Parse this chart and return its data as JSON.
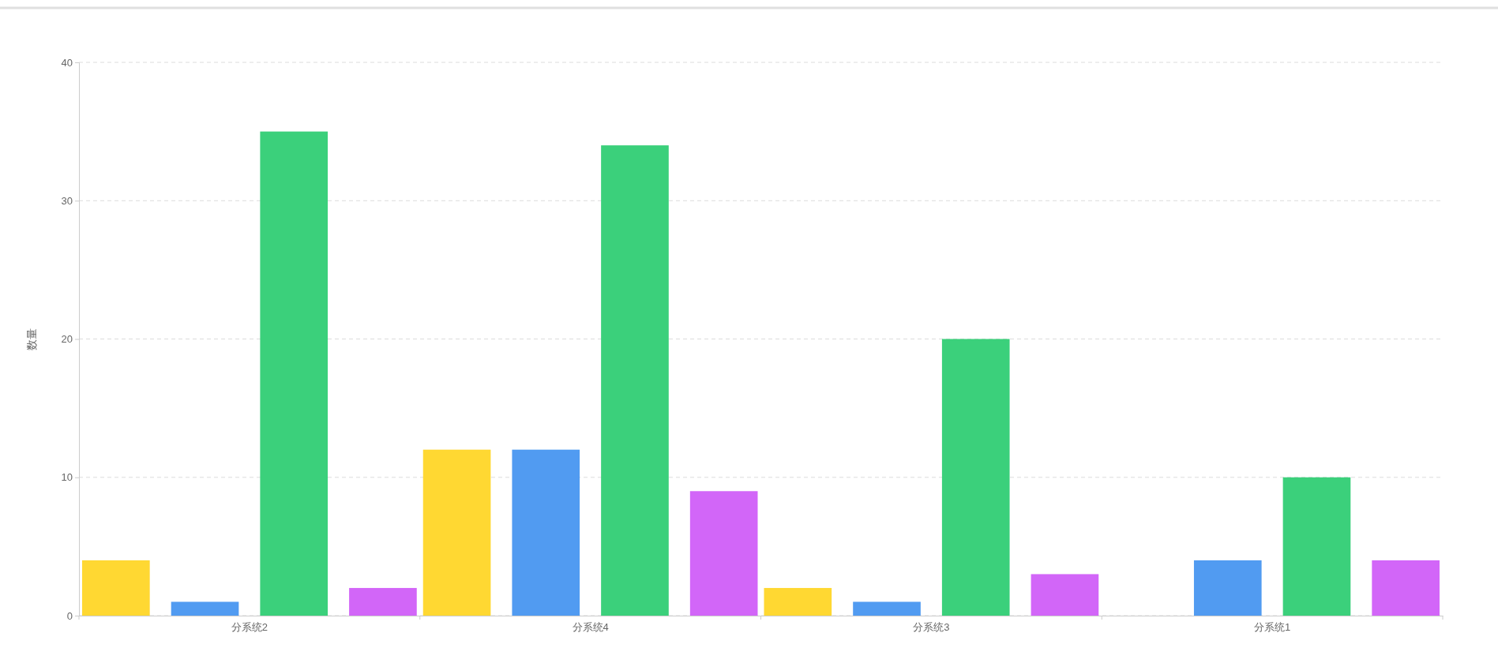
{
  "chart_data": {
    "type": "bar",
    "ylabel": "数量",
    "categories": [
      "分系统2",
      "分系统4",
      "分系统3",
      "分系统1"
    ],
    "series": [
      {
        "color": "#ffd832",
        "values": [
          4,
          12,
          2,
          0
        ]
      },
      {
        "color": "#519bf1",
        "values": [
          1,
          12,
          1,
          4
        ]
      },
      {
        "color": "#3bd07b",
        "values": [
          35,
          34,
          20,
          10
        ]
      },
      {
        "color": "#d266f8",
        "values": [
          2,
          9,
          3,
          4
        ]
      }
    ],
    "ylim": [
      0,
      40
    ],
    "yticks": [
      0,
      10,
      20,
      30,
      40
    ],
    "grid": "y"
  }
}
